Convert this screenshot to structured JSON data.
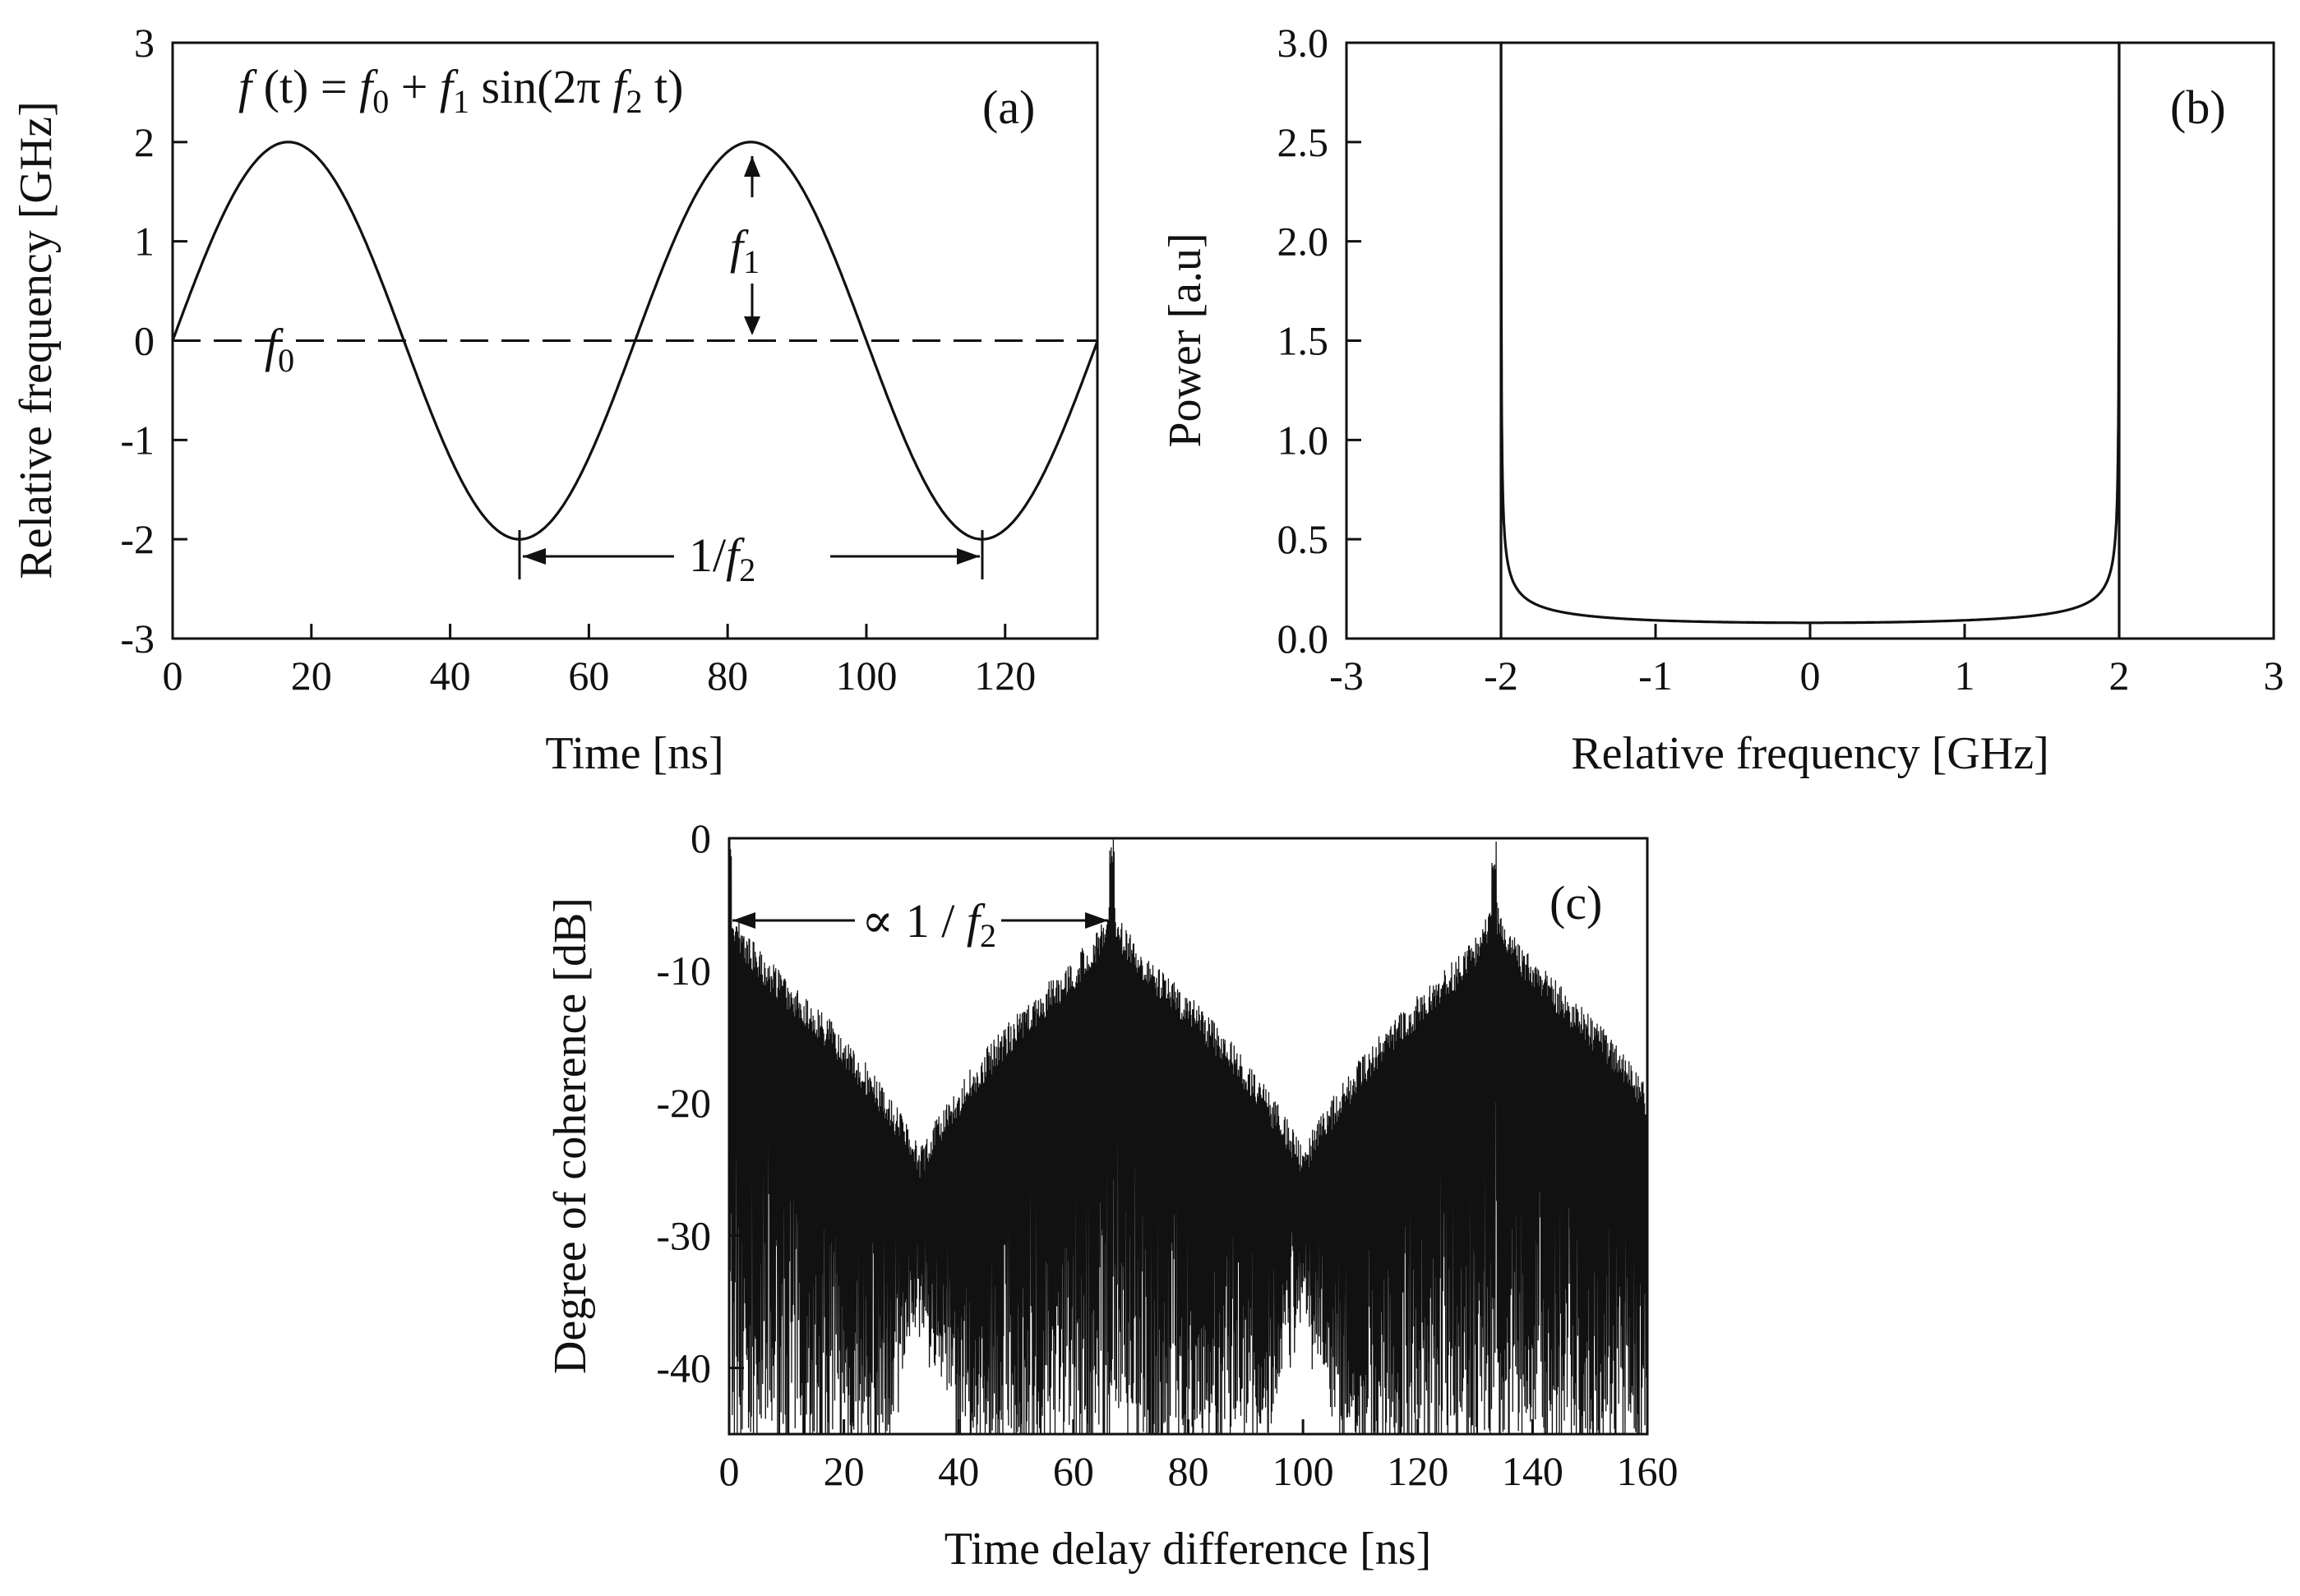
{
  "colors": {
    "line": "#111111",
    "background": "#ffffff"
  },
  "chart_data": [
    {
      "id": "a",
      "type": "line",
      "panel_label": "(a)",
      "xlabel": "Time [ns]",
      "ylabel": "Relative frequency [GHz]",
      "xlim": [
        0,
        133.3
      ],
      "ylim": [
        -3,
        3
      ],
      "xticks": [
        0,
        20,
        40,
        60,
        80,
        100,
        120
      ],
      "yticks": [
        3,
        2,
        1,
        0,
        -1,
        -2,
        -3
      ],
      "grid": false,
      "series": [
        {
          "name": "f(t)",
          "style": "solid",
          "function": "f0 + f1*sin(2*pi*f2*t)",
          "f0": 0,
          "f1": 2,
          "f2_GHz": 0.015,
          "x_range": [
            0,
            133.3
          ]
        },
        {
          "name": "f0 baseline",
          "style": "dashed",
          "x": [
            0,
            133.3
          ],
          "y": [
            0,
            0
          ]
        }
      ],
      "annotations": {
        "equation": {
          "f": "f",
          "t_paren": " (t) = ",
          "f0": "f",
          "f0_sub": "0",
          "plus": " + ",
          "f1": "f",
          "f1_sub": "1",
          "sin": " sin(2π ",
          "f2": "f",
          "f2_sub": "2",
          "tail": " t)"
        },
        "f1_label": {
          "f": "f",
          "sub": "1"
        },
        "f0_label": {
          "f": "f",
          "sub": "0"
        },
        "period_label": {
          "prefix": "1/",
          "f": "f",
          "sub": "2"
        }
      }
    },
    {
      "id": "b",
      "type": "line",
      "panel_label": "(b)",
      "xlabel": "Relative frequency [GHz]",
      "ylabel": "Power [a.u]",
      "xlim": [
        -3,
        3
      ],
      "ylim": [
        0,
        3.0
      ],
      "xticks": [
        -3,
        -2,
        -1,
        0,
        1,
        2,
        3
      ],
      "yticks": [
        "3.0",
        "2.5",
        "2.0",
        "1.5",
        "1.0",
        "0.5",
        "0.0"
      ],
      "grid": false,
      "series": [
        {
          "name": "power spectrum",
          "style": "solid",
          "function": "0.5/(pi*sqrt(4 - x^2))",
          "x_range": [
            -2,
            2
          ]
        }
      ]
    },
    {
      "id": "c",
      "type": "line",
      "panel_label": "(c)",
      "xlabel": "Time delay difference [ns]",
      "ylabel": "Degree of coherence [dB]",
      "xlim": [
        0,
        160
      ],
      "ylim": [
        -45,
        0
      ],
      "xticks": [
        0,
        20,
        40,
        60,
        80,
        100,
        120,
        140,
        160
      ],
      "yticks": [
        0,
        -10,
        -20,
        -30,
        -40
      ],
      "grid": false,
      "peaks_ns": [
        0,
        66.7,
        133.3
      ],
      "envelope_floor_dB": -26,
      "series": [
        {
          "name": "degree of coherence",
          "style": "solid",
          "description": "densely oscillating trace, peaks at multiples of 1/f2"
        }
      ],
      "annotations": {
        "period_label": {
          "prefix": "∝ 1 / ",
          "f": "f",
          "sub": "2"
        }
      }
    }
  ]
}
